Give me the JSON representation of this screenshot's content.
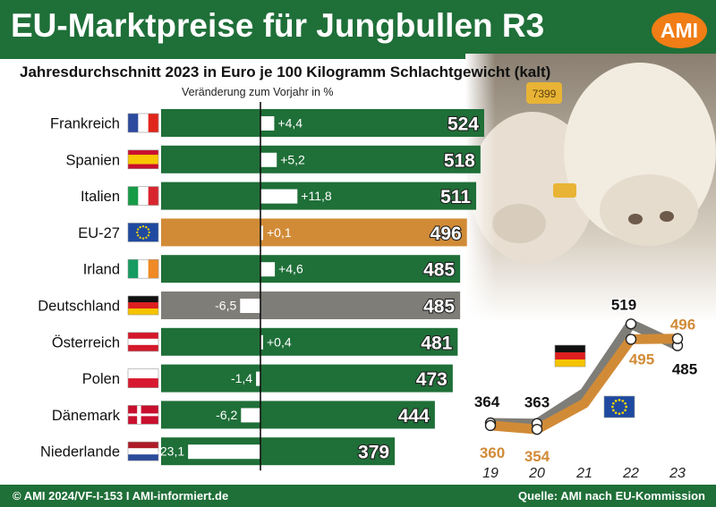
{
  "header": {
    "title": "EU-Marktpreise für Jungbullen R3",
    "logo": "AMI"
  },
  "subtitle": "Jahresdurchschnitt 2023 in Euro je 100 Kilogramm Schlachtgewicht (kalt)",
  "change_label": "Veränderung zum Vorjahr in %",
  "footer": {
    "left": "© AMI 2024/VF-I-153 I AMI-informiert.de",
    "right": "Quelle: AMI nach EU-Kommission"
  },
  "photo": {
    "ear_tag": "7399"
  },
  "colors": {
    "green": "#1f6f38",
    "orange": "#d18b37",
    "gray": "#7f7d77",
    "white": "#ffffff"
  },
  "chart_data": [
    {
      "type": "bar",
      "subtitle": "Jahresdurchschnitt 2023 in Euro je 100 Kilogramm Schlachtgewicht (kalt)",
      "annotation": "Veränderung zum Vorjahr in %",
      "categories": [
        "Frankreich",
        "Spanien",
        "Italien",
        "EU-27",
        "Irland",
        "Deutschland",
        "Österreich",
        "Polen",
        "Dänemark",
        "Niederlande"
      ],
      "values": [
        524,
        518,
        511,
        496,
        485,
        485,
        481,
        473,
        444,
        379
      ],
      "value_labels": [
        "524",
        "518",
        "511",
        "496",
        "485",
        "485",
        "481",
        "473",
        "444",
        "379"
      ],
      "change_pct": [
        4.4,
        5.2,
        11.8,
        0.1,
        4.6,
        -6.5,
        0.4,
        -1.4,
        -6.2,
        -23.1
      ],
      "change_labels": [
        "+4,4",
        "+5,2",
        "+11,8",
        "+0,1",
        "+4,6",
        "-6,5",
        "+0,4",
        "-1,4",
        "-6,2",
        "-23,1"
      ],
      "flags": [
        "fr",
        "es",
        "it",
        "eu",
        "ie",
        "de",
        "at",
        "pl",
        "dk",
        "nl"
      ],
      "bar_colors": [
        "green",
        "green",
        "green",
        "orange",
        "green",
        "gray",
        "green",
        "green",
        "green",
        "green"
      ]
    },
    {
      "type": "line",
      "x": [
        "19",
        "20",
        "21",
        "22",
        "23"
      ],
      "series": [
        {
          "flag": "de",
          "color": "#7f7d77",
          "values": [
            364,
            363,
            null,
            519,
            485
          ],
          "labels": [
            "364",
            "363",
            "",
            "519",
            "485"
          ]
        },
        {
          "flag": "eu",
          "color": "#d18b37",
          "values": [
            360,
            354,
            null,
            495,
            496
          ],
          "labels": [
            "360",
            "354",
            "",
            "495",
            "496"
          ]
        }
      ]
    }
  ]
}
